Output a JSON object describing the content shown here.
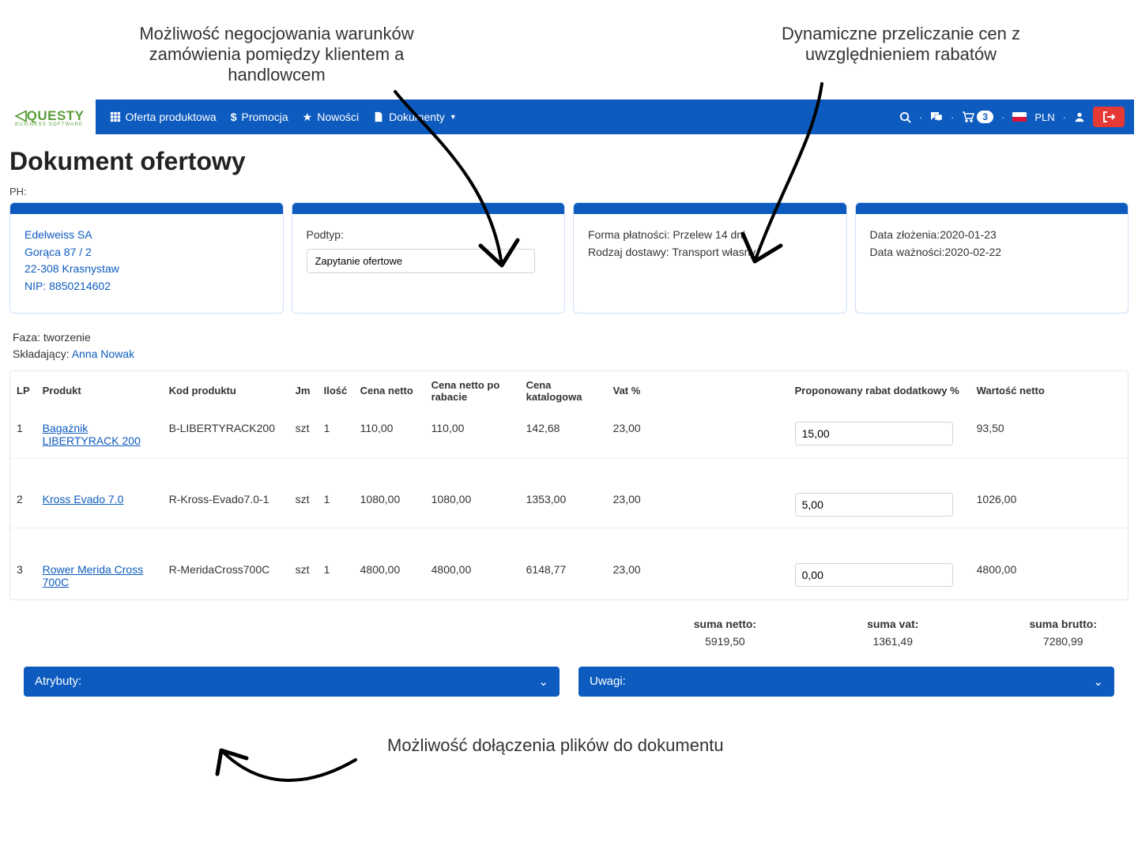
{
  "annotations": {
    "top_left": "Możliwość negocjowania warunków zamówienia pomiędzy klientem a handlowcem",
    "top_right": "Dynamiczne przeliczanie cen z uwzględnieniem rabatów",
    "bottom": "Możliwość dołączenia plików do dokumentu"
  },
  "colors": {
    "primary": "#0d5bbf",
    "danger": "#e53935",
    "logo": "#5a9e3a"
  },
  "logo": {
    "name": "QUESTY",
    "tagline": "BUSINESS SOFTWARE"
  },
  "nav": {
    "items": [
      {
        "label": "Oferta produktowa",
        "icon": "grid"
      },
      {
        "label": "Promocja",
        "icon": "dollar"
      },
      {
        "label": "Nowości",
        "icon": "star"
      },
      {
        "label": "Dokumenty",
        "icon": "file",
        "dropdown": true
      }
    ],
    "cart_count": "3",
    "currency": "PLN"
  },
  "page_title": "Dokument ofertowy",
  "ph_label": "PH:",
  "cards": {
    "client": {
      "name": "Edelweiss SA",
      "addr1": "Gorąca 87 / 2",
      "addr2": "22-308 Krasnystaw",
      "nip": "NIP: 8850214602"
    },
    "subtype": {
      "label": "Podtyp:",
      "value": "Zapytanie ofertowe"
    },
    "terms": {
      "payment": "Forma płatności: Przelew 14 dni",
      "delivery": "Rodzaj dostawy: Transport własny"
    },
    "dates": {
      "created": "Data złożenia:2020-01-23",
      "valid": "Data ważności:2020-02-22"
    }
  },
  "meta": {
    "phase": "Faza: tworzenie",
    "submitter_label": "Składający:",
    "submitter": "Anna Nowak"
  },
  "table": {
    "headers": {
      "lp": "LP",
      "product": "Produkt",
      "code": "Kod produktu",
      "jm": "Jm",
      "qty": "Ilość",
      "net": "Cena netto",
      "net_rebate": "Cena netto po rabacie",
      "catalog": "Cena katalogowa",
      "vat": "Vat %",
      "rebate": "Proponowany rabat dodatkowy %",
      "value": "Wartość netto"
    },
    "rows": [
      {
        "lp": "1",
        "product": "Bagażnik LIBERTYRACK 200",
        "code": "B-LIBERTYRACK200",
        "jm": "szt",
        "qty": "1",
        "net": "110,00",
        "net_rebate": "110,00",
        "catalog": "142,68",
        "vat": "23,00",
        "rebate": "15,00",
        "value": "93,50"
      },
      {
        "lp": "2",
        "product": "Kross Evado 7.0",
        "code": "R-Kross-Evado7.0-1",
        "jm": "szt",
        "qty": "1",
        "net": "1080,00",
        "net_rebate": "1080,00",
        "catalog": "1353,00",
        "vat": "23,00",
        "rebate": "5,00",
        "value": "1026,00"
      },
      {
        "lp": "3",
        "product": "Rower Merida Cross 700C",
        "code": "R-MeridaCross700C",
        "jm": "szt",
        "qty": "1",
        "net": "4800,00",
        "net_rebate": "4800,00",
        "catalog": "6148,77",
        "vat": "23,00",
        "rebate": "0,00",
        "value": "4800,00"
      }
    ]
  },
  "totals": {
    "net_label": "suma netto:",
    "net_value": "5919,50",
    "vat_label": "suma vat:",
    "vat_value": "1361,49",
    "gross_label": "suma brutto:",
    "gross_value": "7280,99"
  },
  "collapsible": {
    "attributes": "Atrybuty:",
    "remarks": "Uwagi:"
  }
}
